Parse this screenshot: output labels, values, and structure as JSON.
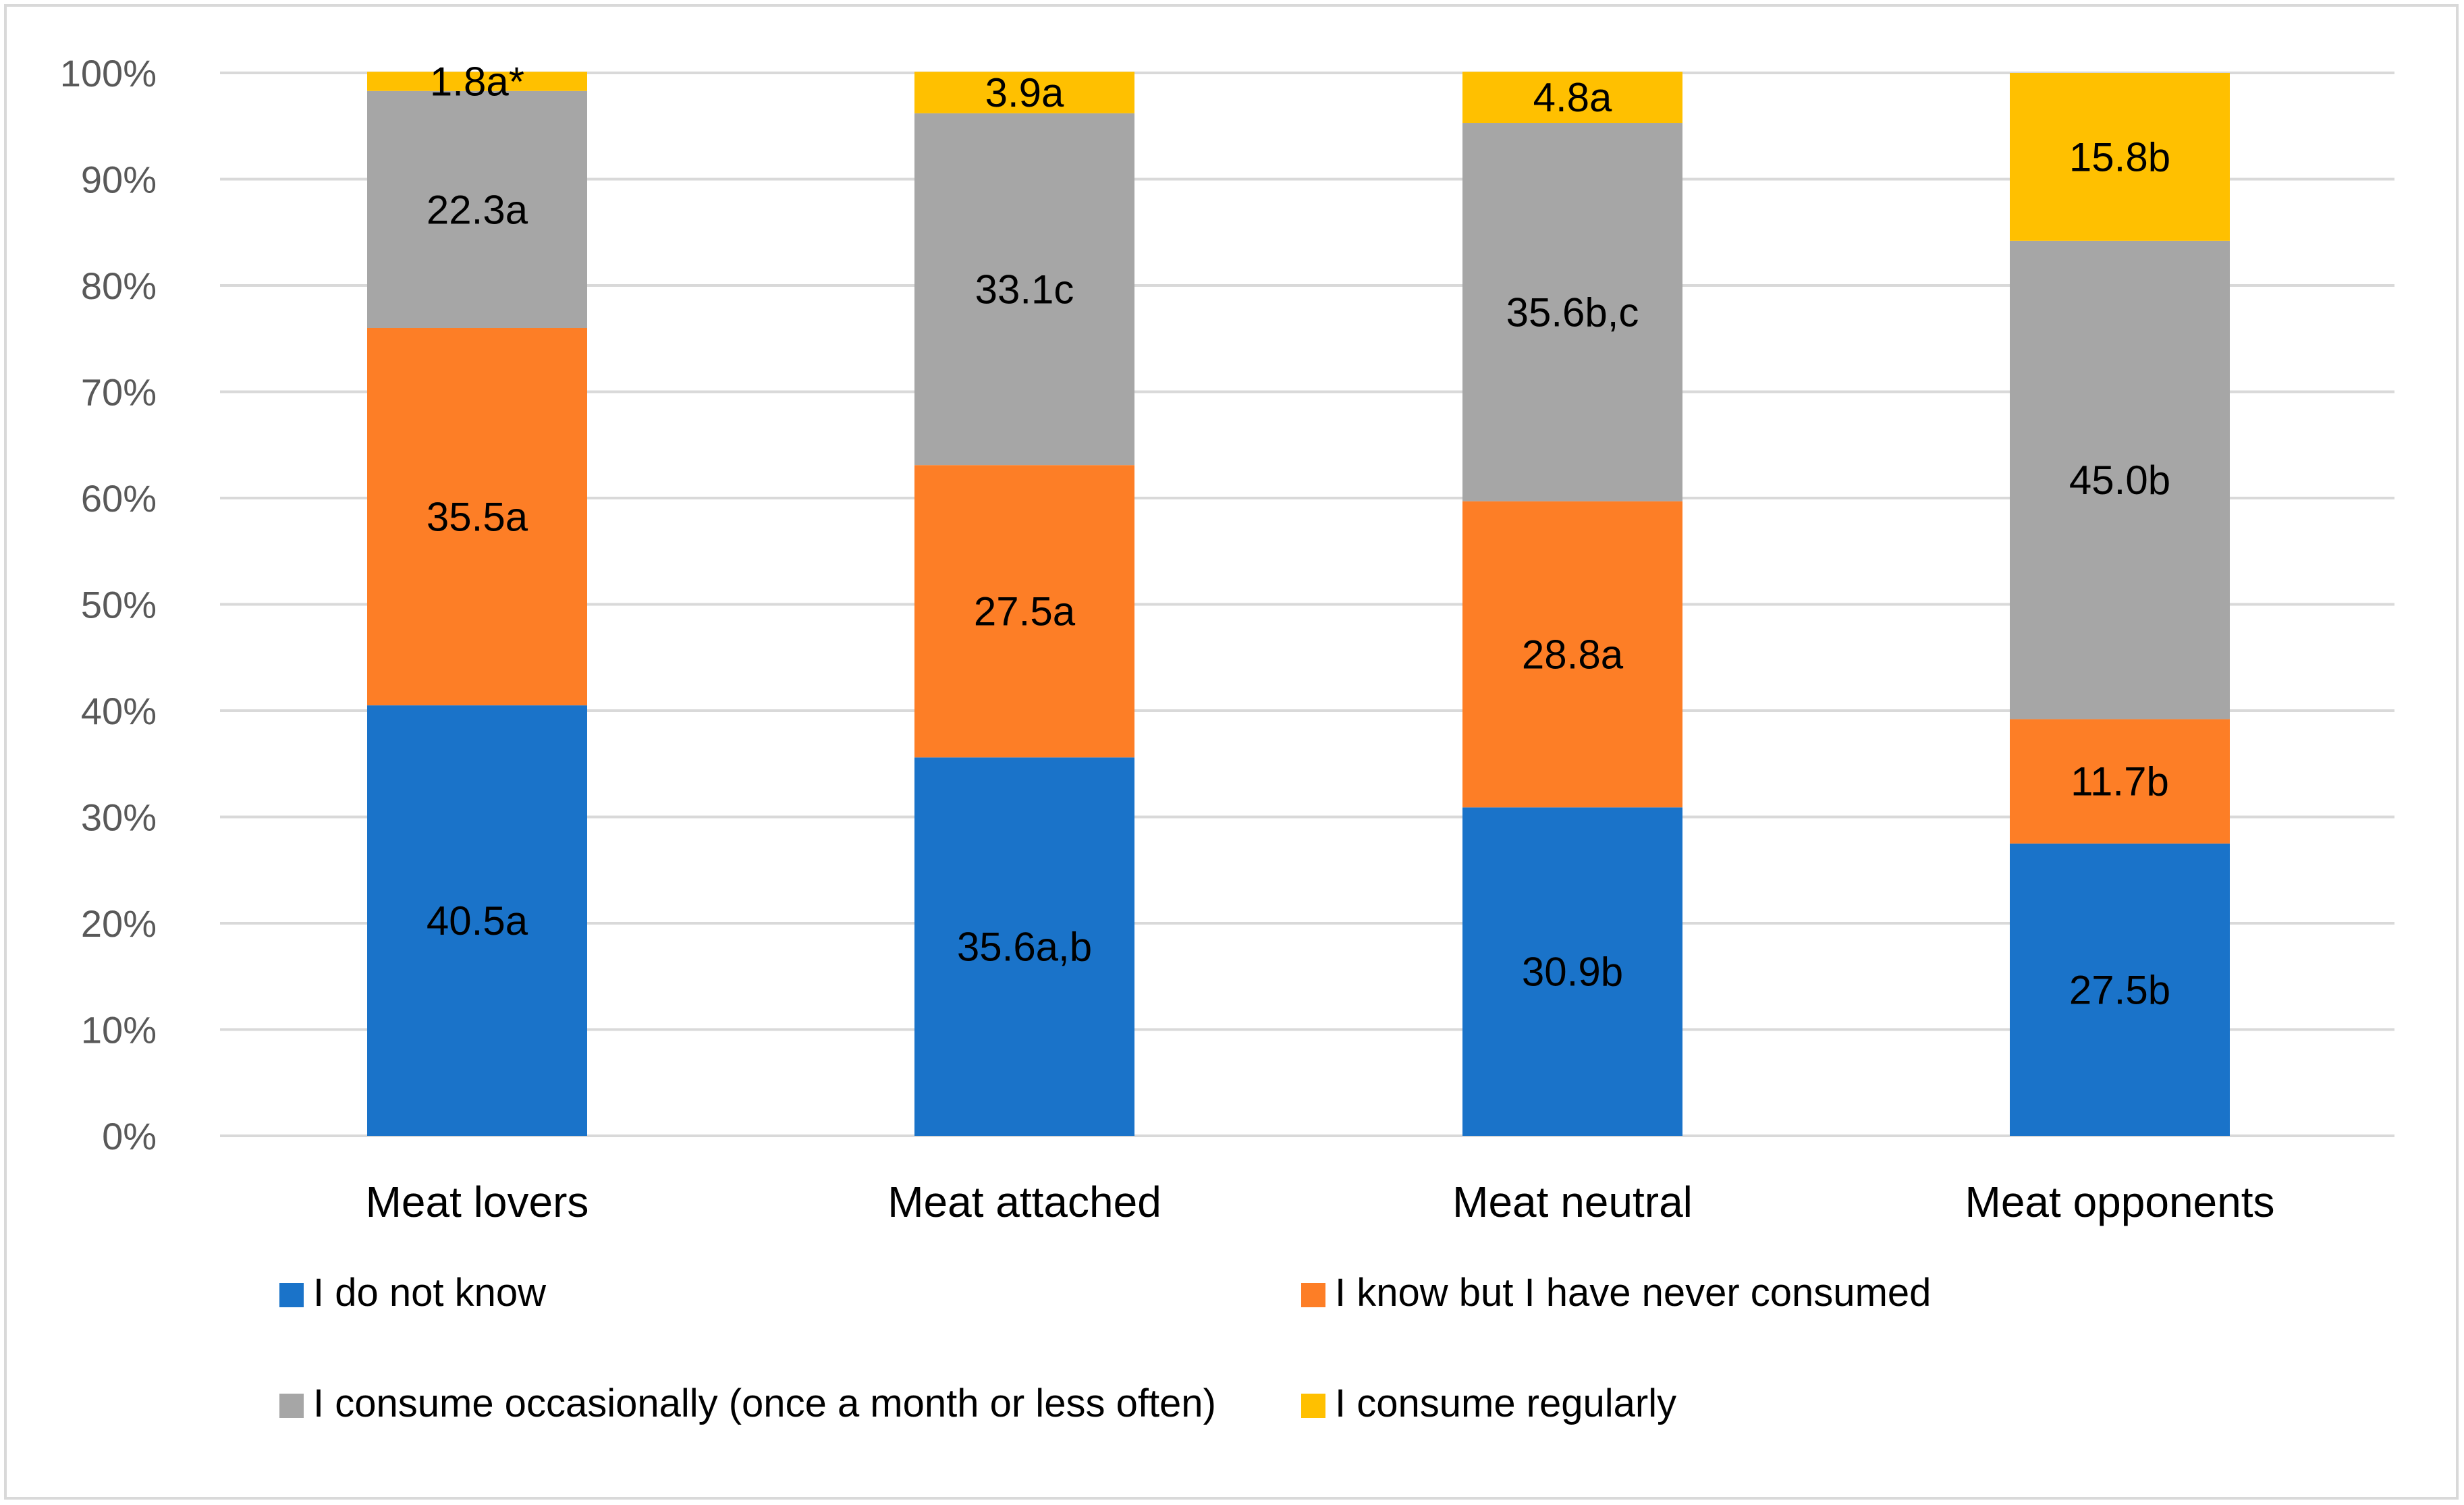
{
  "chart_data": {
    "type": "bar",
    "stacked": true,
    "title": "",
    "xlabel": "",
    "ylabel": "",
    "ylim": [
      0,
      100
    ],
    "y_ticks": [
      "0%",
      "10%",
      "20%",
      "30%",
      "40%",
      "50%",
      "60%",
      "70%",
      "80%",
      "90%",
      "100%"
    ],
    "grid": true,
    "legend_position": "bottom",
    "categories": [
      "Meat lovers",
      "Meat attached",
      "Meat neutral",
      "Meat opponents"
    ],
    "series": [
      {
        "name": "I do not know",
        "color": "#1a73c9",
        "values": [
          40.5,
          35.6,
          30.9,
          27.5
        ],
        "labels": [
          "40.5a",
          "35.6a,b",
          "30.9b",
          "27.5b"
        ]
      },
      {
        "name": "I know but I have never consumed",
        "color": "#fd7e26",
        "values": [
          35.5,
          27.5,
          28.8,
          11.7
        ],
        "labels": [
          "35.5a",
          "27.5a",
          "28.8a",
          "11.7b"
        ]
      },
      {
        "name": "I consume occasionally (once a month or less often)",
        "color": "#a6a6a6",
        "values": [
          22.3,
          33.1,
          35.6,
          45.0
        ],
        "labels": [
          "22.3a",
          "33.1c",
          "35.6b,c",
          "45.0b"
        ]
      },
      {
        "name": "I consume regularly",
        "color": "#ffc000",
        "values": [
          1.8,
          3.9,
          4.8,
          15.8
        ],
        "labels": [
          "1.8a*",
          "3.9a",
          "4.8a",
          "15.8b"
        ]
      }
    ]
  }
}
